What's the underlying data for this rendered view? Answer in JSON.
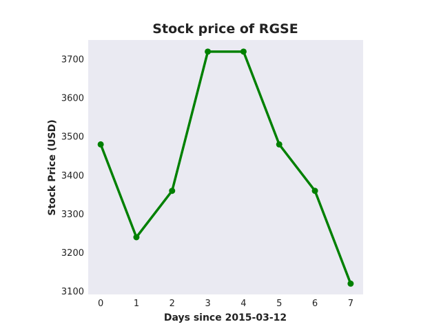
{
  "chart_data": {
    "type": "line",
    "title": "Stock price of RGSE",
    "xlabel": "Days since 2015-03-12",
    "ylabel": "Stock Price (USD)",
    "x": [
      0,
      1,
      2,
      3,
      4,
      5,
      6,
      7
    ],
    "series": [
      {
        "values": [
          3480,
          3240,
          3360,
          3720,
          3720,
          3480,
          3360,
          3120
        ],
        "color": "#008000"
      }
    ],
    "xlim": [
      -0.35,
      7.35
    ],
    "ylim": [
      3092,
      3750
    ],
    "xticks": [
      0,
      1,
      2,
      3,
      4,
      5,
      6,
      7
    ],
    "yticks": [
      3100,
      3200,
      3300,
      3400,
      3500,
      3600,
      3700
    ],
    "grid": false,
    "background_color": "#eaeaf2"
  }
}
